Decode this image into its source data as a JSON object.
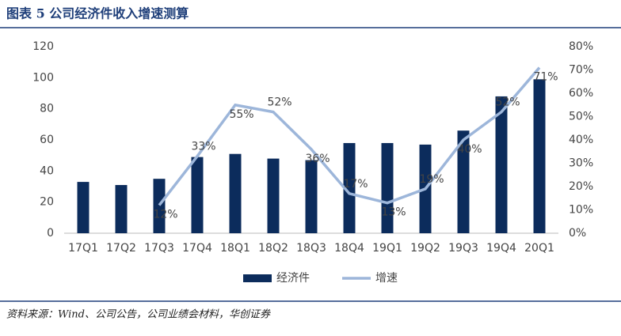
{
  "chart_data": {
    "type": "bar_line",
    "title": "图表 5 公司经济件收入增速测算",
    "categories": [
      "17Q1",
      "17Q2",
      "17Q3",
      "17Q4",
      "18Q1",
      "18Q2",
      "18Q3",
      "18Q4",
      "19Q1",
      "19Q2",
      "19Q3",
      "19Q4",
      "20Q1"
    ],
    "series": [
      {
        "name": "经济件",
        "color": "#0c2c5c",
        "type": "bar",
        "values": [
          33,
          31,
          35,
          49,
          51,
          48,
          47,
          58,
          58,
          57,
          66,
          88,
          99
        ]
      },
      {
        "name": "增速",
        "color": "#9db6da",
        "type": "line",
        "axis": "y2",
        "values": [
          null,
          null,
          12,
          33,
          55,
          52,
          36,
          17,
          13,
          19,
          40,
          52,
          71
        ],
        "value_labels": [
          null,
          null,
          "12%",
          "33%",
          "55%",
          "52%",
          "36%",
          "17%",
          "13%",
          "19%",
          "40%",
          "52%",
          "71%"
        ]
      }
    ],
    "ylim": [
      0,
      120
    ],
    "yticks": [
      0,
      20,
      40,
      60,
      80,
      100,
      120
    ],
    "y2lim": [
      0,
      80
    ],
    "y2ticks": [
      {
        "value": 0,
        "label": "0%"
      },
      {
        "value": 10,
        "label": "10%"
      },
      {
        "value": 20,
        "label": "20%"
      },
      {
        "value": 30,
        "label": "30%"
      },
      {
        "value": 40,
        "label": "40%"
      },
      {
        "value": 50,
        "label": "50%"
      },
      {
        "value": 60,
        "label": "60%"
      },
      {
        "value": 70,
        "label": "70%"
      },
      {
        "value": 80,
        "label": "80%"
      }
    ],
    "legend": "bottom",
    "source": "资料来源：Wind、公司公告，公司业绩会材料，华创证券"
  }
}
